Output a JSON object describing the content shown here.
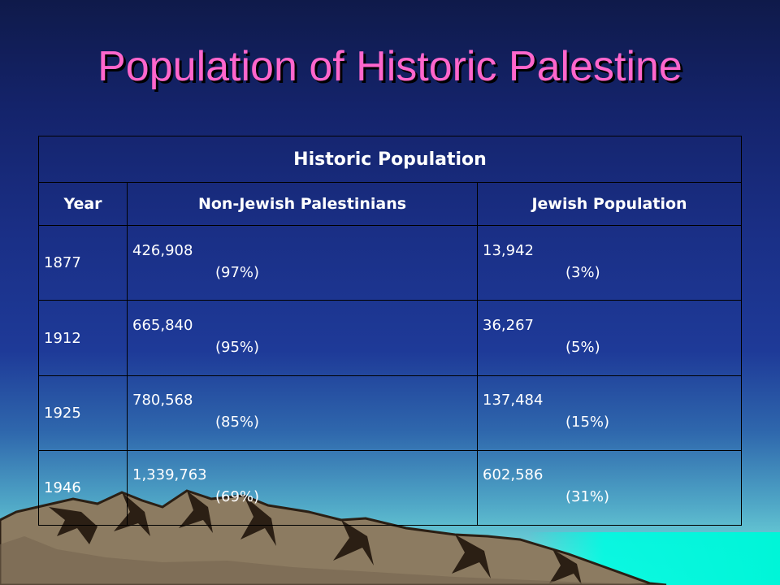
{
  "title": "Population of Historic Palestine",
  "table": {
    "caption": "Historic Population",
    "columns": [
      "Year",
      "Non-Jewish Palestinians",
      "Jewish Population"
    ],
    "rows": [
      {
        "year": "1877",
        "non_jewish": "426,908",
        "non_jewish_pct": "(97%)",
        "jewish": "13,942",
        "jewish_pct": "(3%)"
      },
      {
        "year": "1912",
        "non_jewish": "665,840",
        "non_jewish_pct": "(95%)",
        "jewish": "36,267",
        "jewish_pct": "(5%)"
      },
      {
        "year": "1925",
        "non_jewish": "780,568",
        "non_jewish_pct": "(85%)",
        "jewish": "137,484",
        "jewish_pct": "(15%)"
      },
      {
        "year": "1946",
        "non_jewish": "1,339,763",
        "non_jewish_pct": "(69%)",
        "jewish": "602,586",
        "jewish_pct": "(31%)"
      }
    ]
  },
  "colors": {
    "title": "#ff66cc",
    "sky_top": "#0f1a4a",
    "horizon": "#86eedf",
    "mountain": "#8c7b61",
    "mountain_shadow": "#2b1f14"
  }
}
